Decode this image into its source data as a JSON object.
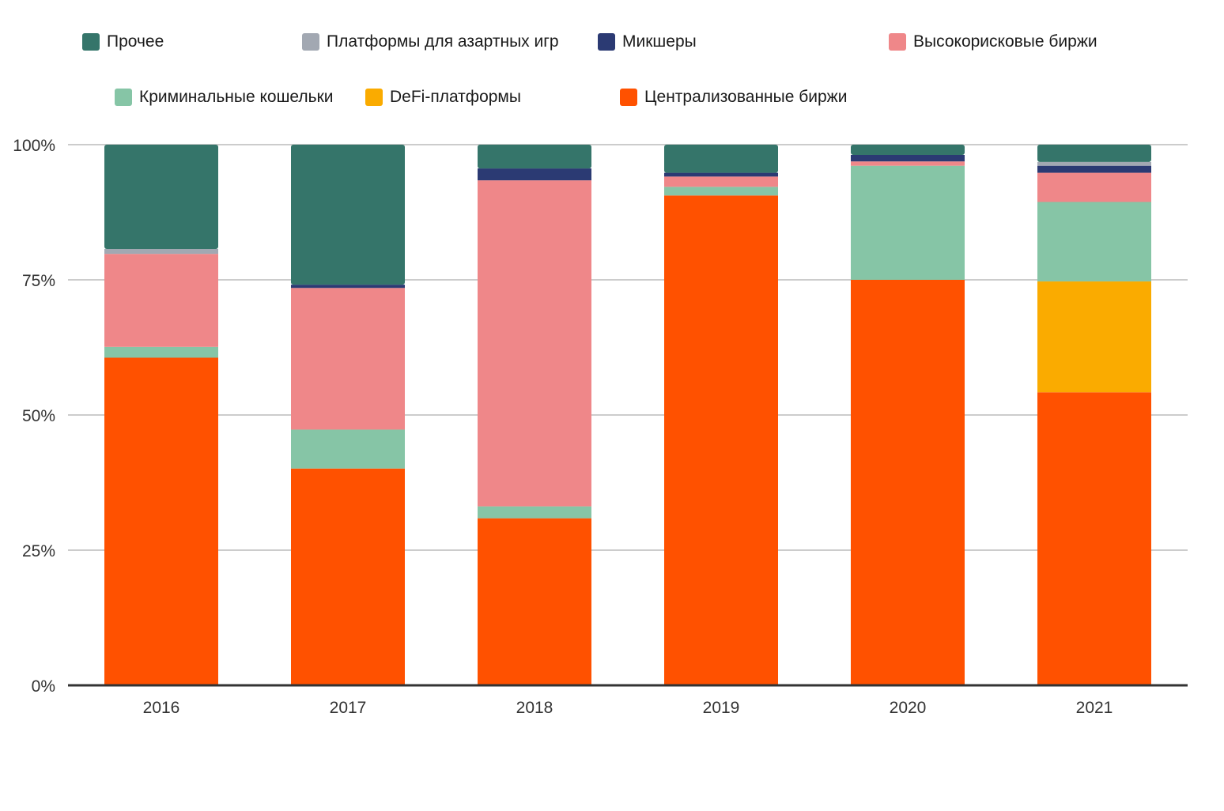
{
  "chart_data": {
    "type": "bar",
    "stacked": true,
    "categories": [
      "2016",
      "2017",
      "2018",
      "2019",
      "2020",
      "2021"
    ],
    "y_ticks": [
      {
        "value": 0,
        "label": "0%"
      },
      {
        "value": 25,
        "label": "25%"
      },
      {
        "value": 50,
        "label": "50%"
      },
      {
        "value": 75,
        "label": "75%"
      },
      {
        "value": 100,
        "label": "100%"
      }
    ],
    "ylim": [
      0,
      100
    ],
    "grid": true,
    "legend_position": "top",
    "series": [
      {
        "name": "Централизованные биржи",
        "color": "#FF5100",
        "values": [
          60.6,
          40.1,
          30.9,
          90.6,
          75.0,
          54.2
        ]
      },
      {
        "name": "DeFi-платформы",
        "color": "#FAAB00",
        "values": [
          0,
          0,
          0,
          0,
          0,
          20.5
        ]
      },
      {
        "name": "Криминальные кошельки",
        "color": "#86C5A6",
        "values": [
          2.0,
          7.2,
          2.2,
          1.6,
          21.1,
          14.7
        ]
      },
      {
        "name": "Высокорисковые биржи",
        "color": "#EF8789",
        "values": [
          17.2,
          26.2,
          60.3,
          1.9,
          0.8,
          5.4
        ]
      },
      {
        "name": "Микшеры",
        "color": "#2B3A73",
        "values": [
          0,
          0.6,
          2.2,
          0.7,
          1.2,
          1.3
        ]
      },
      {
        "name": "Платформы для азартных игр",
        "color": "#A2A8B2",
        "values": [
          0.9,
          0,
          0,
          0,
          0,
          0.7
        ]
      },
      {
        "name": "Прочее",
        "color": "#35756A",
        "values": [
          19.3,
          25.9,
          4.4,
          5.2,
          1.9,
          3.2
        ]
      }
    ]
  },
  "legend": [
    {
      "label": "Прочее",
      "color": "#35756A"
    },
    {
      "label": "Платформы для азартных игр",
      "color": "#A2A8B2"
    },
    {
      "label": "Микшеры",
      "color": "#2B3A73"
    },
    {
      "label": "Высокорисковые биржи",
      "color": "#EF8789"
    },
    {
      "label": "Криминальные кошельки",
      "color": "#86C5A6"
    },
    {
      "label": "DeFi-платформы",
      "color": "#FAAB00"
    },
    {
      "label": "Централизованные биржи",
      "color": "#FF5100"
    }
  ]
}
